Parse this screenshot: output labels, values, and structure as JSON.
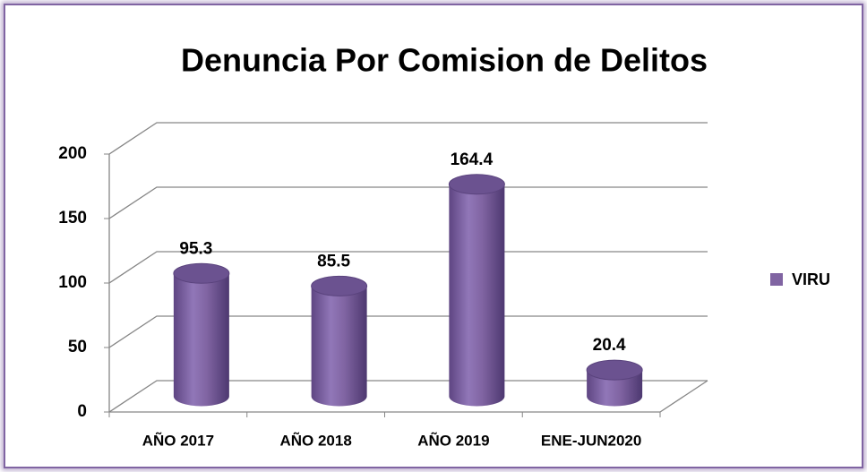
{
  "chart_data": {
    "type": "bar",
    "title": "Denuncia Por Comision de Delitos",
    "categories": [
      "AÑO 2017",
      "AÑO 2018",
      "AÑO 2019",
      "ENE-JUN2020"
    ],
    "series": [
      {
        "name": "VIRU",
        "color": "#8064a2",
        "values": [
          95.3,
          85.5,
          164.4,
          20.4
        ]
      }
    ],
    "ylim": [
      0,
      200
    ],
    "yticks": [
      0,
      50,
      100,
      150,
      200
    ],
    "grid": true,
    "legend": "right"
  }
}
